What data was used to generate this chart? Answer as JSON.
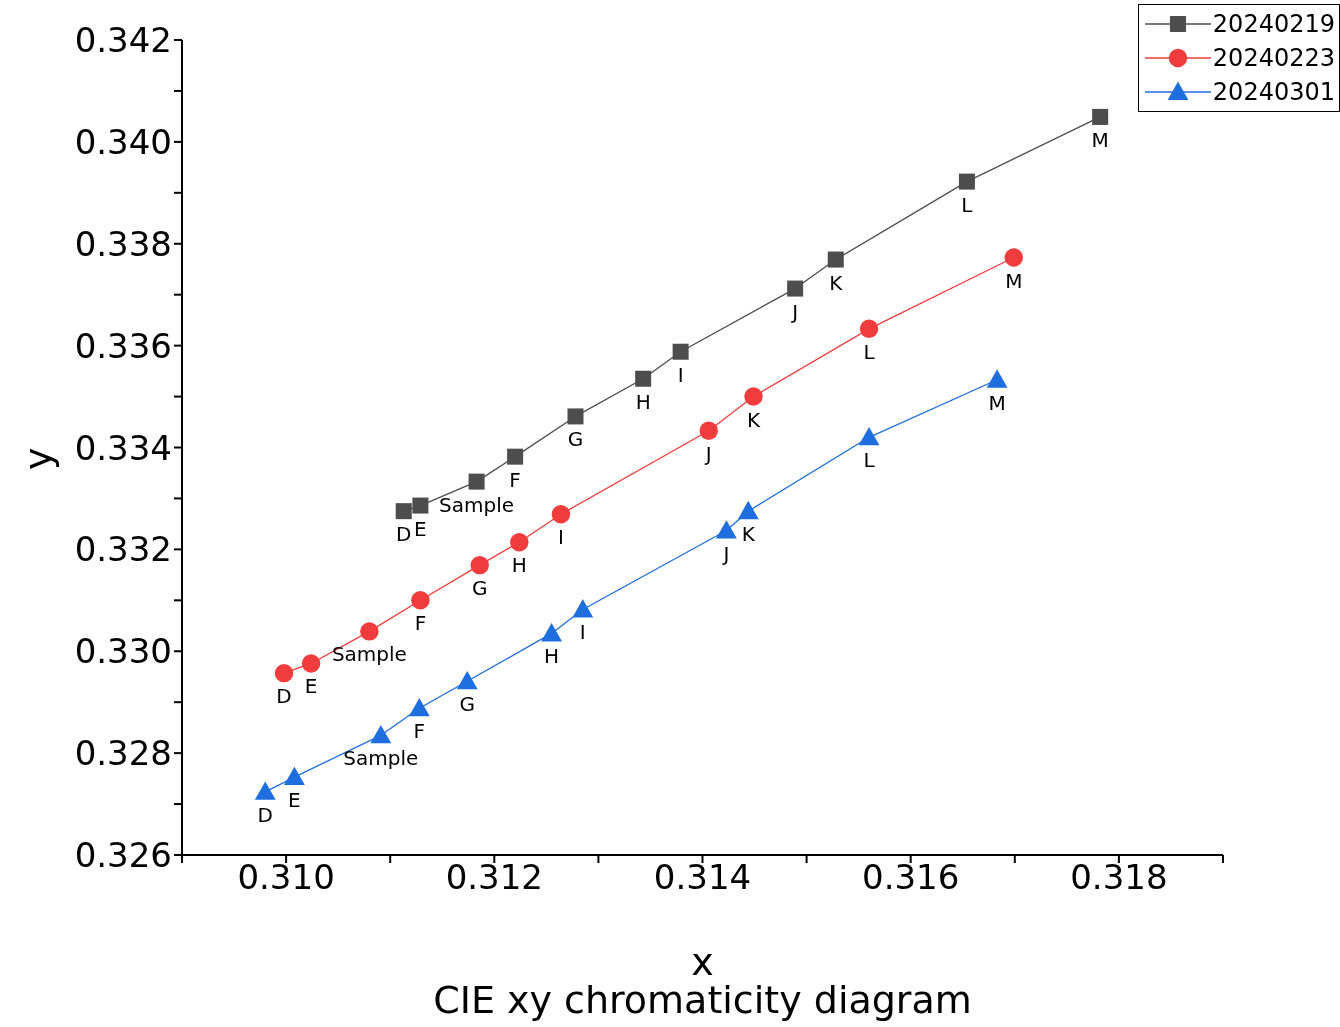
{
  "chart_data": {
    "type": "line",
    "title": "CIE xy chromaticity diagram",
    "xlabel": "x",
    "ylabel": "y",
    "xlim": [
      0.309,
      0.319
    ],
    "ylim": [
      0.326,
      0.342
    ],
    "xticks": [
      {
        "value": 0.309,
        "label": null
      },
      {
        "value": 0.31,
        "label": "0.310"
      },
      {
        "value": 0.311,
        "label": null
      },
      {
        "value": 0.312,
        "label": "0.312"
      },
      {
        "value": 0.313,
        "label": null
      },
      {
        "value": 0.314,
        "label": "0.314"
      },
      {
        "value": 0.315,
        "label": null
      },
      {
        "value": 0.316,
        "label": "0.316"
      },
      {
        "value": 0.317,
        "label": null
      },
      {
        "value": 0.318,
        "label": "0.318"
      },
      {
        "value": 0.319,
        "label": null
      }
    ],
    "yticks": [
      0.326,
      {
        "value": 0.327,
        "label": null
      },
      0.328,
      {
        "value": 0.329,
        "label": null
      },
      {
        "value": 0.33,
        "label": "0.330"
      },
      {
        "value": 0.331,
        "label": null
      },
      0.332,
      {
        "value": 0.333,
        "label": null
      },
      0.334,
      {
        "value": 0.335,
        "label": null
      },
      0.336,
      {
        "value": 0.337,
        "label": null
      },
      0.338,
      {
        "value": 0.339,
        "label": null
      },
      {
        "value": 0.34,
        "label": "0.340"
      },
      {
        "value": 0.341,
        "label": null
      },
      0.342
    ],
    "grid": false,
    "legend": "top right",
    "line_style": "solid",
    "series": [
      {
        "name": "20240219",
        "color": "#4d4d4d",
        "marker": "square",
        "x": [
          0.31113,
          0.31129,
          0.31183,
          0.3122,
          0.31278,
          0.31343,
          0.31379,
          0.31489,
          0.31528,
          0.31654,
          0.31782
        ],
        "values": [
          0.33275,
          0.33286,
          0.33333,
          0.33382,
          0.33461,
          0.33535,
          0.33588,
          0.33712,
          0.33769,
          0.33922,
          0.34049
        ],
        "value_labels": [
          "D",
          "E",
          "Sample",
          "F",
          "G",
          "H",
          "I",
          "J",
          "K",
          "L",
          "M"
        ]
      },
      {
        "name": "20240223",
        "color": "#f03c3c",
        "marker": "circle",
        "x": [
          0.30998,
          0.31024,
          0.3108,
          0.31129,
          0.31186,
          0.31224,
          0.31264,
          0.31406,
          0.31449,
          0.3156,
          0.31699
        ],
        "values": [
          0.32957,
          0.32976,
          0.33039,
          0.331,
          0.33169,
          0.33214,
          0.33269,
          0.33433,
          0.335,
          0.33633,
          0.33773
        ],
        "value_labels": [
          "D",
          "E",
          "Sample",
          "F",
          "G",
          "H",
          "I",
          "J",
          "K",
          "L",
          "M"
        ]
      },
      {
        "name": "20240301",
        "color": "#1f6ee0",
        "marker": "triangle",
        "x": [
          0.3098,
          0.31008,
          0.31091,
          0.31128,
          0.31174,
          0.31255,
          0.31285,
          0.31423,
          0.31444,
          0.3156,
          0.31683
        ],
        "values": [
          0.32724,
          0.32753,
          0.32835,
          0.32888,
          0.32941,
          0.33035,
          0.33082,
          0.33237,
          0.33275,
          0.3342,
          0.33533
        ],
        "value_labels": [
          "D",
          "E",
          "Sample",
          "F",
          "G",
          "H",
          "I",
          "J",
          "K",
          "L",
          "M"
        ]
      }
    ]
  }
}
